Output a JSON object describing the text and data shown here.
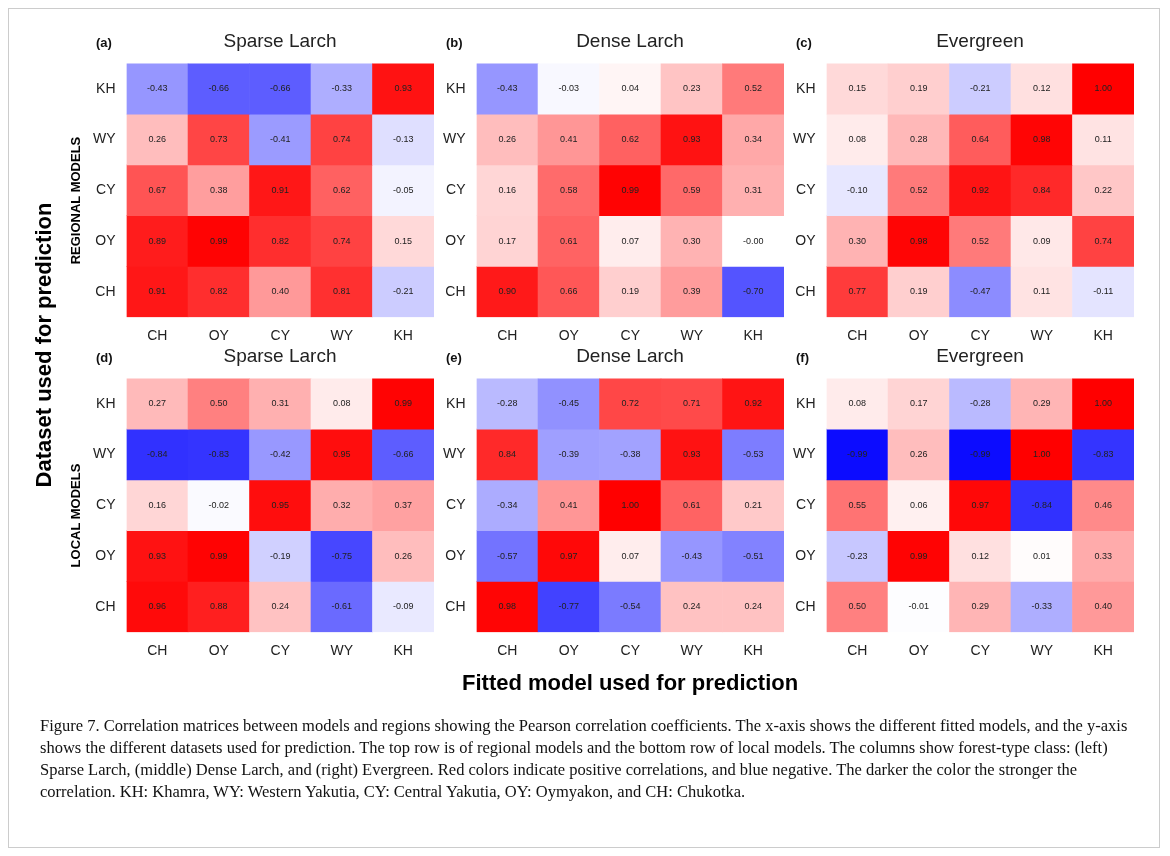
{
  "chart_data": [
    {
      "type": "heatmap",
      "title": "Sparse Larch",
      "ylabel": "REGIONAL MODELS",
      "annotations": [
        "(a)",
        "Dataset used for prediction"
      ],
      "categories": [
        "CH",
        "OY",
        "CY",
        "WY",
        "KH"
      ],
      "y_categories": [
        "KH",
        "WY",
        "CY",
        "OY",
        "CH"
      ],
      "cells": [
        [
          -0.43,
          -0.66,
          -0.66,
          -0.33,
          0.93
        ],
        [
          0.26,
          0.73,
          -0.41,
          0.74,
          -0.13
        ],
        [
          0.67,
          0.38,
          0.91,
          0.62,
          -0.05
        ],
        [
          0.89,
          0.99,
          0.82,
          0.74,
          0.15
        ],
        [
          0.91,
          0.82,
          0.4,
          0.81,
          -0.21
        ]
      ],
      "cell_labels": [
        [
          "-0.43",
          "-0.66",
          "-0.66",
          "-0.33",
          "0.93"
        ],
        [
          "0.26",
          "0.73",
          "-0.41",
          "0.74",
          "-0.13"
        ],
        [
          "0.67",
          "0.38",
          "0.91",
          "0.62",
          "-0.05"
        ],
        [
          "0.89",
          "0.99",
          "0.82",
          "0.74",
          "0.15"
        ],
        [
          "0.91",
          "0.82",
          "0.40",
          "0.81",
          "-0.21"
        ]
      ]
    },
    {
      "type": "heatmap",
      "title": "Dense Larch",
      "annotations": [
        "(b)"
      ],
      "categories": [
        "CH",
        "OY",
        "CY",
        "WY",
        "KH"
      ],
      "y_categories": [
        "KH",
        "WY",
        "CY",
        "OY",
        "CH"
      ],
      "cells": [
        [
          -0.43,
          -0.03,
          0.04,
          0.23,
          0.52
        ],
        [
          0.26,
          0.41,
          0.62,
          0.93,
          0.34
        ],
        [
          0.16,
          0.58,
          0.99,
          0.59,
          0.31
        ],
        [
          0.17,
          0.61,
          0.07,
          0.3,
          -0.0
        ],
        [
          0.9,
          0.66,
          0.19,
          0.39,
          -0.7
        ]
      ],
      "cell_labels": [
        [
          "-0.43",
          "-0.03",
          "0.04",
          "0.23",
          "0.52"
        ],
        [
          "0.26",
          "0.41",
          "0.62",
          "0.93",
          "0.34"
        ],
        [
          "0.16",
          "0.58",
          "0.99",
          "0.59",
          "0.31"
        ],
        [
          "0.17",
          "0.61",
          "0.07",
          "0.30",
          "-0.00"
        ],
        [
          "0.90",
          "0.66",
          "0.19",
          "0.39",
          "-0.70"
        ]
      ]
    },
    {
      "type": "heatmap",
      "title": "Evergreen",
      "annotations": [
        "(c)"
      ],
      "categories": [
        "CH",
        "OY",
        "CY",
        "WY",
        "KH"
      ],
      "y_categories": [
        "KH",
        "WY",
        "CY",
        "OY",
        "CH"
      ],
      "cells": [
        [
          0.15,
          0.19,
          -0.21,
          0.12,
          1.0
        ],
        [
          0.08,
          0.28,
          0.64,
          0.98,
          0.11
        ],
        [
          -0.1,
          0.52,
          0.92,
          0.84,
          0.22
        ],
        [
          0.3,
          0.98,
          0.52,
          0.09,
          0.74
        ],
        [
          0.77,
          0.19,
          -0.47,
          0.11,
          -0.11
        ]
      ],
      "cell_labels": [
        [
          "0.15",
          "0.19",
          "-0.21",
          "0.12",
          "1.00"
        ],
        [
          "0.08",
          "0.28",
          "0.64",
          "0.98",
          "0.11"
        ],
        [
          "-0.10",
          "0.52",
          "0.92",
          "0.84",
          "0.22"
        ],
        [
          "0.30",
          "0.98",
          "0.52",
          "0.09",
          "0.74"
        ],
        [
          "0.77",
          "0.19",
          "-0.47",
          "0.11",
          "-0.11"
        ]
      ]
    },
    {
      "type": "heatmap",
      "title": "Sparse Larch",
      "ylabel": "LOCAL MODELS",
      "annotations": [
        "(d)"
      ],
      "categories": [
        "CH",
        "OY",
        "CY",
        "WY",
        "KH"
      ],
      "y_categories": [
        "KH",
        "WY",
        "CY",
        "OY",
        "CH"
      ],
      "cells": [
        [
          0.27,
          0.5,
          0.31,
          0.08,
          0.99
        ],
        [
          -0.84,
          -0.83,
          -0.42,
          0.95,
          -0.66
        ],
        [
          0.16,
          -0.02,
          0.95,
          0.32,
          0.37
        ],
        [
          0.93,
          0.99,
          -0.19,
          -0.75,
          0.26
        ],
        [
          0.96,
          0.88,
          0.24,
          -0.61,
          -0.09
        ]
      ],
      "cell_labels": [
        [
          "0.27",
          "0.50",
          "0.31",
          "0.08",
          "0.99"
        ],
        [
          "-0.84",
          "-0.83",
          "-0.42",
          "0.95",
          "-0.66"
        ],
        [
          "0.16",
          "-0.02",
          "0.95",
          "0.32",
          "0.37"
        ],
        [
          "0.93",
          "0.99",
          "-0.19",
          "-0.75",
          "0.26"
        ],
        [
          "0.96",
          "0.88",
          "0.24",
          "-0.61",
          "-0.09"
        ]
      ]
    },
    {
      "type": "heatmap",
      "title": "Dense Larch",
      "xlabel": "Fitted model used for prediction",
      "annotations": [
        "(e)"
      ],
      "categories": [
        "CH",
        "OY",
        "CY",
        "WY",
        "KH"
      ],
      "y_categories": [
        "KH",
        "WY",
        "CY",
        "OY",
        "CH"
      ],
      "cells": [
        [
          -0.28,
          -0.45,
          0.72,
          0.71,
          0.92
        ],
        [
          0.84,
          -0.39,
          -0.38,
          0.93,
          -0.53
        ],
        [
          -0.34,
          0.41,
          1.0,
          0.61,
          0.21
        ],
        [
          -0.57,
          0.97,
          0.07,
          -0.43,
          -0.51
        ],
        [
          0.98,
          -0.77,
          -0.54,
          0.24,
          0.24
        ]
      ],
      "cell_labels": [
        [
          "-0.28",
          "-0.45",
          "0.72",
          "0.71",
          "0.92"
        ],
        [
          "0.84",
          "-0.39",
          "-0.38",
          "0.93",
          "-0.53"
        ],
        [
          "-0.34",
          "0.41",
          "1.00",
          "0.61",
          "0.21"
        ],
        [
          "-0.57",
          "0.97",
          "0.07",
          "-0.43",
          "-0.51"
        ],
        [
          "0.98",
          "-0.77",
          "-0.54",
          "0.24",
          "0.24"
        ]
      ]
    },
    {
      "type": "heatmap",
      "title": "Evergreen",
      "annotations": [
        "(f)",
        "Figure 7. Correlation matrices between models and regions showing the Pearson correlation coefficients. The x-axis shows the different fitted models, and the y-axis shows the different datasets used for prediction. The top row is of regional models and the bottom row of local models. The columns show forest-type class: (left) Sparse Larch, (middle) Dense Larch, and (right) Evergreen. Red colors indicate positive correlations, and blue negative. The darker the color the stronger the correlation. KH: Khamra, WY: Western Yakutia, CY: Central Yakutia, OY: Oymyakon, and CH: Chukotka."
      ],
      "categories": [
        "CH",
        "OY",
        "CY",
        "WY",
        "KH"
      ],
      "y_categories": [
        "KH",
        "WY",
        "CY",
        "OY",
        "CH"
      ],
      "cells": [
        [
          0.08,
          0.17,
          -0.28,
          0.29,
          1.0
        ],
        [
          -0.99,
          0.26,
          -0.99,
          1.0,
          -0.83
        ],
        [
          0.55,
          0.06,
          0.97,
          -0.84,
          0.46
        ],
        [
          -0.23,
          0.99,
          0.12,
          0.01,
          0.33
        ],
        [
          0.5,
          -0.01,
          0.29,
          -0.33,
          0.4
        ]
      ],
      "cell_labels": [
        [
          "0.08",
          "0.17",
          "-0.28",
          "0.29",
          "1.00"
        ],
        [
          "-0.99",
          "0.26",
          "-0.99",
          "1.00",
          "-0.83"
        ],
        [
          "0.55",
          "0.06",
          "0.97",
          "-0.84",
          "0.46"
        ],
        [
          "-0.23",
          "0.99",
          "0.12",
          "0.01",
          "0.33"
        ],
        [
          "0.50",
          "-0.01",
          "0.29",
          "-0.33",
          "0.40"
        ]
      ]
    }
  ]
}
